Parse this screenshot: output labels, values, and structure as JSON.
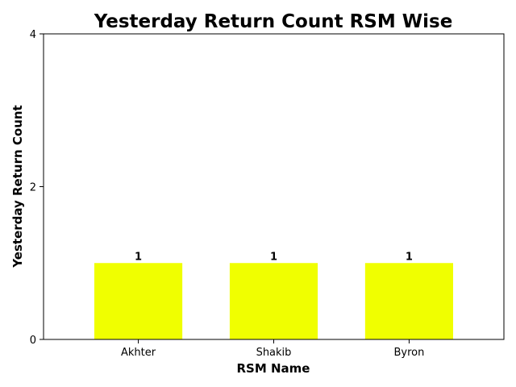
{
  "chart_data": {
    "type": "bar",
    "title": "Yesterday Return Count RSM Wise",
    "xlabel": "RSM Name",
    "ylabel": "Yesterday Return Count",
    "categories": [
      "Akhter",
      "Shakib",
      "Byron"
    ],
    "values": [
      1,
      1,
      1
    ],
    "value_labels": [
      "1",
      "1",
      "1"
    ],
    "ylim": [
      0,
      4
    ],
    "yticks": [
      0,
      2,
      4
    ],
    "ytick_labels": [
      "0",
      "2",
      "4"
    ],
    "grid": false,
    "legend": "none",
    "bar_color": "#f0ff00"
  }
}
